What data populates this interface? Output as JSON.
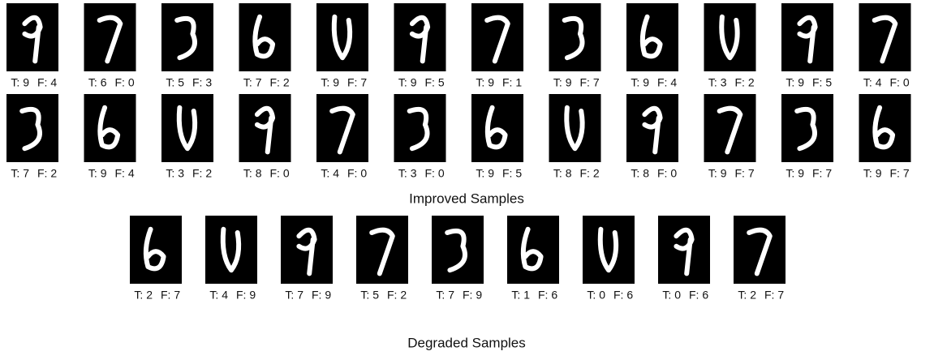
{
  "improved": {
    "title": "Improved Samples",
    "rows": [
      [
        {
          "t": "T: 9",
          "f": "F: 4"
        },
        {
          "t": "T: 6",
          "f": "F: 0"
        },
        {
          "t": "T: 5",
          "f": "F: 3"
        },
        {
          "t": "T: 7",
          "f": "F: 2"
        },
        {
          "t": "T: 9",
          "f": "F: 7"
        },
        {
          "t": "T: 9",
          "f": "F: 5"
        },
        {
          "t": "T: 9",
          "f": "F: 1"
        },
        {
          "t": "T: 9",
          "f": "F: 7"
        },
        {
          "t": "T: 9",
          "f": "F: 4"
        },
        {
          "t": "T: 3",
          "f": "F: 2"
        },
        {
          "t": "T: 9",
          "f": "F: 5"
        },
        {
          "t": "T: 4",
          "f": "F: 0"
        }
      ],
      [
        {
          "t": "T: 7",
          "f": "F: 2"
        },
        {
          "t": "T: 9",
          "f": "F: 4"
        },
        {
          "t": "T: 3",
          "f": "F: 2"
        },
        {
          "t": "T: 8",
          "f": "F: 0"
        },
        {
          "t": "T: 4",
          "f": "F: 0"
        },
        {
          "t": "T: 3",
          "f": "F: 0"
        },
        {
          "t": "T: 9",
          "f": "F: 5"
        },
        {
          "t": "T: 8",
          "f": "F: 2"
        },
        {
          "t": "T: 8",
          "f": "F: 0"
        },
        {
          "t": "T: 9",
          "f": "F: 7"
        },
        {
          "t": "T: 9",
          "f": "F: 7"
        },
        {
          "t": "T: 9",
          "f": "F: 7"
        }
      ]
    ]
  },
  "degraded": {
    "title": "Degraded Samples",
    "samples": [
      {
        "t": "T: 2",
        "f": "F: 7"
      },
      {
        "t": "T: 4",
        "f": "F: 9"
      },
      {
        "t": "T: 7",
        "f": "F: 9"
      },
      {
        "t": "T: 5",
        "f": "F: 2"
      },
      {
        "t": "T: 7",
        "f": "F: 9"
      },
      {
        "t": "T: 1",
        "f": "F: 6"
      },
      {
        "t": "T: 0",
        "f": "F: 6"
      },
      {
        "t": "T: 0",
        "f": "F: 6"
      },
      {
        "t": "T: 2",
        "f": "F: 7"
      }
    ]
  }
}
